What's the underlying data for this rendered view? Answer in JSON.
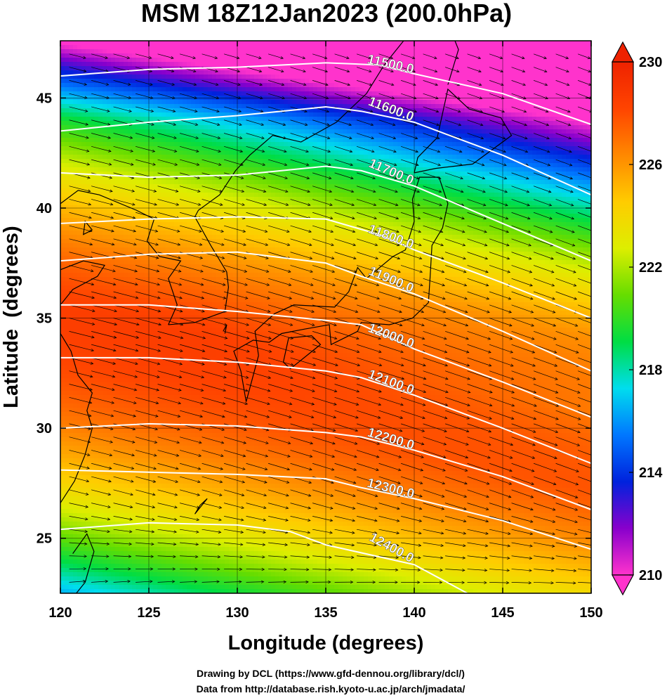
{
  "chart_data": {
    "type": "heatmap",
    "title": "MSM 18Z12Jan2023 (200.0hPa)",
    "xlabel": "Longitude (degrees)",
    "ylabel": "Latitude  (degrees)",
    "xlim": [
      120,
      150
    ],
    "ylim": [
      22.5,
      47.6
    ],
    "x_ticks": [
      "120",
      "125",
      "130",
      "135",
      "140",
      "145",
      "150"
    ],
    "y_ticks": [
      "25",
      "30",
      "35",
      "40",
      "45"
    ],
    "grid": true,
    "colorbar": {
      "min": 210,
      "max": 230,
      "ticks": [
        "210",
        "214",
        "218",
        "222",
        "226",
        "230"
      ],
      "colors": [
        "#ff33cc",
        "#8800cc",
        "#0022dd",
        "#0077ff",
        "#00ddee",
        "#00dd44",
        "#66dd00",
        "#ddee00",
        "#ffcc00",
        "#ff8800",
        "#ff4400",
        "#ee2200"
      ],
      "placement": "right"
    },
    "contours": [
      {
        "label": "11500.0",
        "points": [
          [
            120,
            46.0
          ],
          [
            125,
            46.3
          ],
          [
            130,
            46.4
          ],
          [
            135,
            46.6
          ],
          [
            138,
            46.5
          ],
          [
            140,
            46.1
          ],
          [
            145,
            45.2
          ],
          [
            150,
            43.8
          ]
        ]
      },
      {
        "label": "11600.0",
        "points": [
          [
            120,
            43.5
          ],
          [
            125,
            43.9
          ],
          [
            130,
            44.2
          ],
          [
            135,
            44.6
          ],
          [
            137,
            44.4
          ],
          [
            140,
            43.9
          ],
          [
            145,
            42.4
          ],
          [
            150,
            40.6
          ]
        ]
      },
      {
        "label": "11700.0",
        "points": [
          [
            120,
            41.6
          ],
          [
            125,
            41.4
          ],
          [
            130,
            41.5
          ],
          [
            135,
            41.9
          ],
          [
            137,
            41.7
          ],
          [
            140,
            41.0
          ],
          [
            145,
            39.3
          ],
          [
            150,
            37.6
          ]
        ]
      },
      {
        "label": "11800.0",
        "points": [
          [
            120,
            39.3
          ],
          [
            125,
            39.5
          ],
          [
            130,
            39.6
          ],
          [
            135,
            39.5
          ],
          [
            138,
            38.8
          ],
          [
            140,
            38.1
          ],
          [
            145,
            36.6
          ],
          [
            150,
            35.0
          ]
        ]
      },
      {
        "label": "11900.0",
        "points": [
          [
            120,
            37.6
          ],
          [
            125,
            37.9
          ],
          [
            130,
            38.0
          ],
          [
            135,
            37.5
          ],
          [
            137,
            36.9
          ],
          [
            140,
            36.1
          ],
          [
            145,
            34.4
          ],
          [
            150,
            32.6
          ]
        ]
      },
      {
        "label": "12000.0",
        "points": [
          [
            120,
            35.6
          ],
          [
            125,
            35.6
          ],
          [
            130,
            35.3
          ],
          [
            135,
            34.9
          ],
          [
            137,
            34.7
          ],
          [
            140,
            33.6
          ],
          [
            145,
            32.1
          ],
          [
            150,
            30.5
          ]
        ]
      },
      {
        "label": "12100.0",
        "points": [
          [
            120,
            33.2
          ],
          [
            125,
            33.2
          ],
          [
            130,
            33.0
          ],
          [
            135,
            32.6
          ],
          [
            137,
            32.3
          ],
          [
            140,
            31.5
          ],
          [
            145,
            30.0
          ],
          [
            150,
            28.4
          ]
        ]
      },
      {
        "label": "12200.0",
        "points": [
          [
            120,
            30.0
          ],
          [
            125,
            30.2
          ],
          [
            130,
            30.1
          ],
          [
            135,
            29.8
          ],
          [
            137,
            29.6
          ],
          [
            140,
            29.0
          ],
          [
            145,
            27.8
          ],
          [
            150,
            26.3
          ]
        ]
      },
      {
        "label": "12300.0",
        "points": [
          [
            120,
            28.1
          ],
          [
            125,
            28.0
          ],
          [
            130,
            27.9
          ],
          [
            135,
            27.7
          ],
          [
            137,
            27.3
          ],
          [
            140,
            26.8
          ],
          [
            145,
            25.8
          ],
          [
            150,
            24.5
          ]
        ]
      },
      {
        "label": "12400.0",
        "points": [
          [
            120,
            25.4
          ],
          [
            125,
            25.7
          ],
          [
            130,
            25.6
          ],
          [
            133,
            25.3
          ],
          [
            135,
            24.7
          ],
          [
            140,
            23.8
          ],
          [
            143,
            22.5
          ]
        ]
      }
    ]
  },
  "credits": {
    "line1": "Drawing by DCL (https://www.gfd-dennou.org/library/dcl/)",
    "line2": "Data from http://database.rish.kyoto-u.ac.jp/arch/jmadata/"
  }
}
